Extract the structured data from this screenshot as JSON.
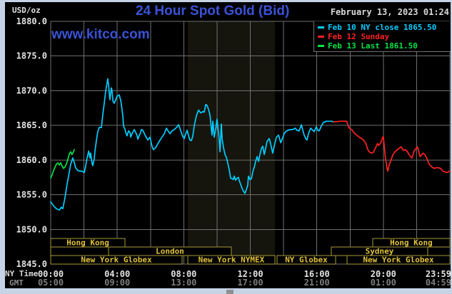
{
  "app": {
    "page_bg": "#c6d3e7",
    "panel_bg": "#000000",
    "grid_color": "#6f6f6f",
    "accent_blue": "#3b52d6",
    "text_white": "#e3e3e3",
    "text_gray": "#7d7d7d",
    "session_text_color": "#e0c23c",
    "session_border_color": "#a89a38"
  },
  "header": {
    "units_label": "USD/oz",
    "title": "24 Hour Spot Gold (Bid)",
    "datetime": "February 13, 2023 01:24",
    "watermark": "www.kitco.com"
  },
  "legend": {
    "items": [
      {
        "label": "Feb 10 NY close 1865.50",
        "color": "#00ccff"
      },
      {
        "label": "Feb 12 Sunday",
        "color": "#ff2222"
      },
      {
        "label": "Feb 13 Last 1861.50",
        "color": "#00e544"
      }
    ]
  },
  "axes": {
    "ny_label": "NY Time",
    "gmt_label": "GMT",
    "y_ticks": [
      "1880.0",
      "1875.0",
      "1870.0",
      "1865.0",
      "1860.0",
      "1855.0",
      "1850.0",
      "1845.0"
    ],
    "x_ticks": [
      {
        "h": 0,
        "ny": "00:00",
        "gmt": "05:00"
      },
      {
        "h": 4,
        "ny": "04:00",
        "gmt": "09:00"
      },
      {
        "h": 8,
        "ny": "08:00",
        "gmt": "13:00"
      },
      {
        "h": 12,
        "ny": "12:00",
        "gmt": "17:00"
      },
      {
        "h": 16,
        "ny": "16:00",
        "gmt": "21:00"
      },
      {
        "h": 20,
        "ny": "20:00",
        "gmt": "01:00"
      },
      {
        "h": 24,
        "ny": "23:59",
        "gmt": "04:59"
      }
    ]
  },
  "chart_data": {
    "type": "line",
    "title": "24 Hour Spot Gold (Bid)",
    "xlabel": "NY Time (hours)",
    "ylabel": "USD/oz",
    "xlim": [
      0,
      24
    ],
    "ylim": [
      1845,
      1880
    ],
    "x_grid_step_hours": 2,
    "y_grid_step": 5,
    "grid": true,
    "legend_position": "top-right",
    "nymex_band": {
      "from_h": 8.24,
      "to_h": 13.48,
      "color": "#15150d"
    },
    "series": [
      {
        "name": "Feb 10 NY close 1865.50",
        "color": "#00ccff",
        "points": [
          [
            0,
            1854.0
          ],
          [
            0.17,
            1853.4
          ],
          [
            0.34,
            1853.0
          ],
          [
            0.52,
            1852.8
          ],
          [
            0.64,
            1853.2
          ],
          [
            0.73,
            1853.0
          ],
          [
            0.86,
            1854.6
          ],
          [
            0.99,
            1856.6
          ],
          [
            1.12,
            1858.3
          ],
          [
            1.2,
            1859.4
          ],
          [
            1.33,
            1860.3
          ],
          [
            1.42,
            1859.6
          ],
          [
            1.5,
            1858.9
          ],
          [
            1.63,
            1858.5
          ],
          [
            1.76,
            1858.4
          ],
          [
            1.89,
            1858.4
          ],
          [
            2.02,
            1858.2
          ],
          [
            2.1,
            1859.1
          ],
          [
            2.19,
            1860.3
          ],
          [
            2.28,
            1861.3
          ],
          [
            2.36,
            1860.3
          ],
          [
            2.4,
            1861.0
          ],
          [
            2.49,
            1859.5
          ],
          [
            2.53,
            1859.2
          ],
          [
            2.62,
            1860.2
          ],
          [
            2.66,
            1861.3
          ],
          [
            2.75,
            1862.9
          ],
          [
            2.83,
            1864.1
          ],
          [
            2.92,
            1864.7
          ],
          [
            3.05,
            1864.7
          ],
          [
            3.13,
            1866.5
          ],
          [
            3.22,
            1868.2
          ],
          [
            3.31,
            1870.0
          ],
          [
            3.43,
            1871.7
          ],
          [
            3.48,
            1870.8
          ],
          [
            3.52,
            1869.7
          ],
          [
            3.56,
            1868.7
          ],
          [
            3.65,
            1870.4
          ],
          [
            3.69,
            1870.0
          ],
          [
            3.74,
            1868.5
          ],
          [
            3.82,
            1868.2
          ],
          [
            3.91,
            1868.7
          ],
          [
            3.99,
            1869.2
          ],
          [
            4.12,
            1869.4
          ],
          [
            4.21,
            1868.6
          ],
          [
            4.25,
            1868.0
          ],
          [
            4.34,
            1866.3
          ],
          [
            4.38,
            1864.9
          ],
          [
            4.47,
            1864.4
          ],
          [
            4.55,
            1863.7
          ],
          [
            4.59,
            1863.5
          ],
          [
            4.68,
            1864.2
          ],
          [
            4.77,
            1864.0
          ],
          [
            4.81,
            1863.3
          ],
          [
            4.89,
            1863.8
          ],
          [
            5.02,
            1864.4
          ],
          [
            5.11,
            1864.0
          ],
          [
            5.2,
            1863.5
          ],
          [
            5.24,
            1863.0
          ],
          [
            5.32,
            1863.5
          ],
          [
            5.41,
            1864.0
          ],
          [
            5.45,
            1864.4
          ],
          [
            5.54,
            1864.3
          ],
          [
            5.67,
            1863.6
          ],
          [
            5.84,
            1862.9
          ],
          [
            5.97,
            1863.3
          ],
          [
            6.1,
            1861.9
          ],
          [
            6.18,
            1861.5
          ],
          [
            6.31,
            1861.8
          ],
          [
            6.48,
            1862.5
          ],
          [
            6.66,
            1863.2
          ],
          [
            6.83,
            1863.8
          ],
          [
            6.96,
            1864.6
          ],
          [
            7.08,
            1864.1
          ],
          [
            7.17,
            1863.8
          ],
          [
            7.3,
            1864.2
          ],
          [
            7.43,
            1864.4
          ],
          [
            7.56,
            1864.7
          ],
          [
            7.69,
            1865.1
          ],
          [
            7.81,
            1864.3
          ],
          [
            7.94,
            1863.4
          ],
          [
            8.03,
            1863.1
          ],
          [
            8.11,
            1863.7
          ],
          [
            8.2,
            1864.3
          ],
          [
            8.29,
            1863.5
          ],
          [
            8.37,
            1862.9
          ],
          [
            8.46,
            1862.8
          ],
          [
            8.54,
            1863.4
          ],
          [
            8.63,
            1864.9
          ],
          [
            8.76,
            1866.4
          ],
          [
            8.89,
            1867.2
          ],
          [
            9.02,
            1866.8
          ],
          [
            9.15,
            1867.0
          ],
          [
            9.23,
            1866.9
          ],
          [
            9.32,
            1868.0
          ],
          [
            9.4,
            1867.9
          ],
          [
            9.49,
            1867.3
          ],
          [
            9.58,
            1866.5
          ],
          [
            9.66,
            1864.5
          ],
          [
            9.7,
            1863.6
          ],
          [
            9.75,
            1865.6
          ],
          [
            9.83,
            1863.3
          ],
          [
            9.92,
            1864.5
          ],
          [
            10.0,
            1865.9
          ],
          [
            10.09,
            1864.0
          ],
          [
            10.13,
            1862.9
          ],
          [
            10.18,
            1861.2
          ],
          [
            10.26,
            1865.2
          ],
          [
            10.31,
            1863.0
          ],
          [
            10.39,
            1861.8
          ],
          [
            10.48,
            1860.8
          ],
          [
            10.56,
            1860.4
          ],
          [
            10.65,
            1859.5
          ],
          [
            10.74,
            1858.5
          ],
          [
            10.82,
            1857.4
          ],
          [
            10.91,
            1857.3
          ],
          [
            10.99,
            1857.2
          ],
          [
            11.03,
            1857.7
          ],
          [
            11.12,
            1857.1
          ],
          [
            11.21,
            1857.4
          ],
          [
            11.29,
            1857.5
          ],
          [
            11.33,
            1857.1
          ],
          [
            11.42,
            1856.5
          ],
          [
            11.51,
            1855.9
          ],
          [
            11.59,
            1855.5
          ],
          [
            11.68,
            1855.2
          ],
          [
            11.76,
            1855.7
          ],
          [
            11.85,
            1856.4
          ],
          [
            11.89,
            1857.7
          ],
          [
            11.98,
            1857.2
          ],
          [
            12.07,
            1857.3
          ],
          [
            12.15,
            1858.3
          ],
          [
            12.24,
            1859.0
          ],
          [
            12.32,
            1859.8
          ],
          [
            12.41,
            1860.5
          ],
          [
            12.5,
            1859.8
          ],
          [
            12.58,
            1860.8
          ],
          [
            12.67,
            1861.7
          ],
          [
            12.75,
            1862.0
          ],
          [
            12.84,
            1860.8
          ],
          [
            12.93,
            1861.8
          ],
          [
            13.01,
            1862.7
          ],
          [
            13.14,
            1863.1
          ],
          [
            13.23,
            1862.3
          ],
          [
            13.35,
            1861.0
          ],
          [
            13.44,
            1862.0
          ],
          [
            13.57,
            1863.3
          ],
          [
            13.7,
            1863.6
          ],
          [
            13.83,
            1862.5
          ],
          [
            13.96,
            1863.3
          ],
          [
            14.04,
            1863.8
          ],
          [
            14.13,
            1864.1
          ],
          [
            14.26,
            1864.3
          ],
          [
            14.43,
            1864.4
          ],
          [
            14.56,
            1864.4
          ],
          [
            14.69,
            1864.6
          ],
          [
            14.81,
            1864.3
          ],
          [
            14.94,
            1864.2
          ],
          [
            15.07,
            1865.1
          ],
          [
            15.16,
            1864.3
          ],
          [
            15.24,
            1863.6
          ],
          [
            15.33,
            1863.1
          ],
          [
            15.41,
            1862.9
          ],
          [
            15.5,
            1863.8
          ],
          [
            15.63,
            1864.6
          ],
          [
            15.71,
            1864.4
          ],
          [
            15.84,
            1864.1
          ],
          [
            15.97,
            1864.8
          ],
          [
            16.05,
            1864.3
          ],
          [
            16.14,
            1864.2
          ],
          [
            16.27,
            1864.9
          ],
          [
            16.39,
            1865.4
          ],
          [
            16.57,
            1865.6
          ],
          [
            16.74,
            1865.6
          ],
          [
            16.9,
            1865.6
          ],
          [
            17.0,
            1865.5
          ]
        ]
      },
      {
        "name": "Feb 12 Sunday",
        "color": "#ff2222",
        "points": [
          [
            17.0,
            1865.5
          ],
          [
            17.4,
            1865.6
          ],
          [
            17.8,
            1865.6
          ],
          [
            17.88,
            1864.9
          ],
          [
            18.0,
            1864.5
          ],
          [
            18.1,
            1864.4
          ],
          [
            18.25,
            1863.9
          ],
          [
            18.4,
            1863.6
          ],
          [
            18.55,
            1863.3
          ],
          [
            18.7,
            1863.1
          ],
          [
            18.8,
            1862.9
          ],
          [
            18.95,
            1862.4
          ],
          [
            19.05,
            1861.6
          ],
          [
            19.15,
            1861.2
          ],
          [
            19.28,
            1861.0
          ],
          [
            19.4,
            1861.1
          ],
          [
            19.5,
            1861.6
          ],
          [
            19.6,
            1862.1
          ],
          [
            19.65,
            1862.4
          ],
          [
            19.72,
            1862.1
          ],
          [
            19.85,
            1862.5
          ],
          [
            19.95,
            1863.2
          ],
          [
            20.0,
            1863.4
          ],
          [
            20.06,
            1861.9
          ],
          [
            20.13,
            1860.2
          ],
          [
            20.22,
            1858.8
          ],
          [
            20.27,
            1858.4
          ],
          [
            20.35,
            1859.3
          ],
          [
            20.45,
            1859.9
          ],
          [
            20.56,
            1860.7
          ],
          [
            20.7,
            1861.2
          ],
          [
            20.8,
            1861.4
          ],
          [
            20.9,
            1861.6
          ],
          [
            21.0,
            1861.8
          ],
          [
            21.08,
            1861.9
          ],
          [
            21.17,
            1861.5
          ],
          [
            21.25,
            1861.4
          ],
          [
            21.33,
            1861.5
          ],
          [
            21.42,
            1861.3
          ],
          [
            21.55,
            1860.8
          ],
          [
            21.64,
            1860.5
          ],
          [
            21.72,
            1860.3
          ],
          [
            21.85,
            1861.3
          ],
          [
            21.98,
            1861.7
          ],
          [
            22.06,
            1861.9
          ],
          [
            22.2,
            1860.5
          ],
          [
            22.28,
            1860.7
          ],
          [
            22.4,
            1861.0
          ],
          [
            22.5,
            1860.8
          ],
          [
            22.62,
            1860.2
          ],
          [
            22.72,
            1859.6
          ],
          [
            22.8,
            1859.3
          ],
          [
            22.92,
            1859.0
          ],
          [
            23.05,
            1858.8
          ],
          [
            23.18,
            1858.9
          ],
          [
            23.3,
            1858.9
          ],
          [
            23.44,
            1858.8
          ],
          [
            23.57,
            1858.4
          ],
          [
            23.7,
            1858.3
          ],
          [
            23.78,
            1858.2
          ],
          [
            23.9,
            1858.3
          ],
          [
            24.0,
            1858.4
          ]
        ]
      },
      {
        "name": "Feb 13 Last 1861.50",
        "color": "#00e544",
        "points": [
          [
            0,
            1857.4
          ],
          [
            0.09,
            1857.9
          ],
          [
            0.17,
            1858.5
          ],
          [
            0.26,
            1859.0
          ],
          [
            0.34,
            1859.4
          ],
          [
            0.43,
            1859.6
          ],
          [
            0.52,
            1859.3
          ],
          [
            0.6,
            1859.6
          ],
          [
            0.69,
            1859.1
          ],
          [
            0.77,
            1858.8
          ],
          [
            0.86,
            1859.0
          ],
          [
            0.94,
            1859.4
          ],
          [
            1.03,
            1860.1
          ],
          [
            1.12,
            1860.9
          ],
          [
            1.2,
            1861.2
          ],
          [
            1.28,
            1860.8
          ],
          [
            1.33,
            1861.0
          ],
          [
            1.42,
            1861.5
          ]
        ]
      }
    ],
    "sessions": [
      {
        "row": 1,
        "from_h": 0,
        "to_h": 4.47,
        "label": "Hong Kong"
      },
      {
        "row": 1,
        "from_h": 19.36,
        "to_h": 24,
        "label": "Hong Kong"
      },
      {
        "row": 2,
        "from_h": 0,
        "to_h": 3.48,
        "label": ""
      },
      {
        "row": 2,
        "from_h": 3.48,
        "to_h": 10.86,
        "label": "London"
      },
      {
        "row": 2,
        "from_h": 16.87,
        "to_h": 22.67,
        "label": "Sydney"
      },
      {
        "row": 3,
        "from_h": 0,
        "to_h": 7.9,
        "label": "New York Globex"
      },
      {
        "row": 3,
        "from_h": 8.24,
        "to_h": 13.48,
        "label": "New York NYMEX"
      },
      {
        "row": 3,
        "from_h": 13.61,
        "to_h": 17.13,
        "label": "NY Globex"
      },
      {
        "row": 3,
        "from_h": 17.82,
        "to_h": 24,
        "label": "New York Globex"
      }
    ]
  }
}
